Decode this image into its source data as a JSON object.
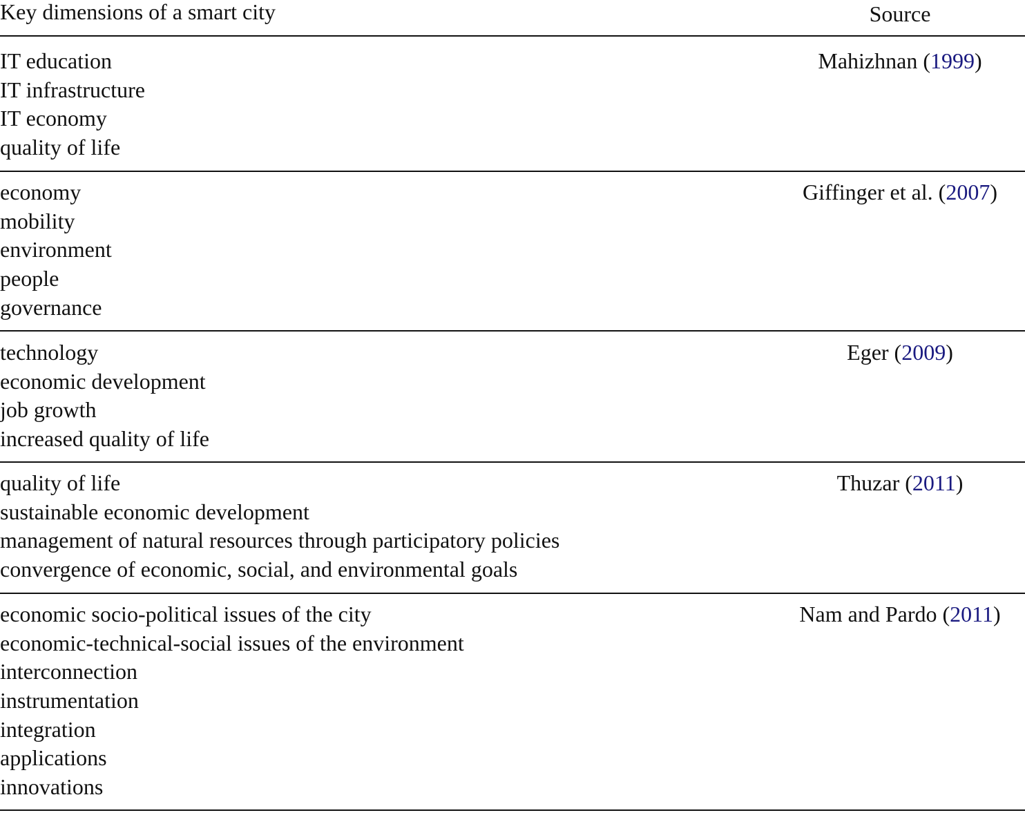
{
  "header": {
    "dimensions": "Key dimensions of a smart city",
    "source": "Source"
  },
  "link_color": "#1a1a80",
  "rows": [
    {
      "dimensions": [
        "IT education",
        "IT infrastructure",
        "IT economy",
        "quality of life"
      ],
      "author": "Mahizhnan",
      "year": "1999"
    },
    {
      "dimensions": [
        "economy",
        "mobility",
        "environment",
        "people",
        "governance"
      ],
      "author": "Giffinger et al.",
      "year": "2007"
    },
    {
      "dimensions": [
        "technology",
        "economic development",
        "job growth",
        "increased quality of life"
      ],
      "author": "Eger",
      "year": "2009"
    },
    {
      "dimensions": [
        "quality of life",
        "sustainable economic development",
        "management of natural resources through participatory policies",
        "convergence of economic, social, and environmental goals"
      ],
      "author": "Thuzar",
      "year": "2011"
    },
    {
      "dimensions": [
        "economic socio-political issues of the city",
        "economic-technical-social issues of the environment",
        "interconnection",
        "instrumentation",
        "integration",
        "applications",
        "innovations"
      ],
      "author": "Nam and Pardo",
      "year": "2011"
    }
  ]
}
